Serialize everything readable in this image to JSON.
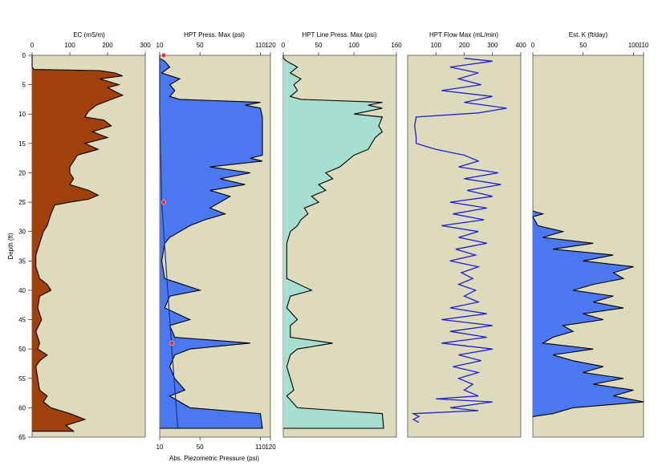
{
  "depth_label": "Depth (ft)",
  "y_ticks": [
    0,
    5,
    10,
    15,
    20,
    25,
    30,
    35,
    40,
    45,
    50,
    55,
    60,
    65
  ],
  "colors": {
    "panel_bg": "#dedbbc",
    "ec_fill": "#a0410d",
    "press_fill": "#4b78ee",
    "line_fill": "#a6dfd0",
    "flow_line": "#1f1fd6",
    "k_fill": "#4b78ee",
    "piezo_line": "#1e2f8c",
    "piezo_marker": "#e0303a"
  },
  "chart_data": [
    {
      "type": "area",
      "title": "EC (mS/m)",
      "xlim": [
        0,
        300
      ],
      "xticks": [
        0,
        100,
        200,
        300
      ],
      "ylim": [
        0,
        65
      ],
      "y_inverted": true,
      "points": [
        [
          0,
          0
        ],
        [
          0,
          2
        ],
        [
          5,
          2.4
        ],
        [
          180,
          2.6
        ],
        [
          220,
          3
        ],
        [
          240,
          3.5
        ],
        [
          180,
          4
        ],
        [
          230,
          5
        ],
        [
          200,
          5.5
        ],
        [
          240,
          6.8
        ],
        [
          210,
          7.5
        ],
        [
          170,
          8.5
        ],
        [
          150,
          9.5
        ],
        [
          140,
          10.5
        ],
        [
          190,
          11
        ],
        [
          210,
          12
        ],
        [
          160,
          13
        ],
        [
          200,
          14
        ],
        [
          140,
          15
        ],
        [
          175,
          16
        ],
        [
          120,
          17
        ],
        [
          110,
          18
        ],
        [
          100,
          19
        ],
        [
          100,
          20
        ],
        [
          110,
          21
        ],
        [
          100,
          22
        ],
        [
          150,
          23
        ],
        [
          175,
          23.8
        ],
        [
          150,
          24.5
        ],
        [
          100,
          25
        ],
        [
          60,
          25.5
        ],
        [
          50,
          27
        ],
        [
          45,
          28
        ],
        [
          40,
          29
        ],
        [
          30,
          30
        ],
        [
          20,
          32
        ],
        [
          10,
          34
        ],
        [
          10,
          36
        ],
        [
          20,
          38
        ],
        [
          40,
          39
        ],
        [
          50,
          40
        ],
        [
          20,
          41
        ],
        [
          15,
          43
        ],
        [
          25,
          45
        ],
        [
          10,
          47
        ],
        [
          20,
          49
        ],
        [
          15,
          50
        ],
        [
          40,
          51
        ],
        [
          20,
          52
        ],
        [
          10,
          53
        ],
        [
          15,
          55
        ],
        [
          20,
          57
        ],
        [
          40,
          58
        ],
        [
          30,
          59
        ],
        [
          50,
          60
        ],
        [
          100,
          61
        ],
        [
          140,
          62
        ],
        [
          90,
          63
        ],
        [
          110,
          64
        ],
        [
          0,
          64
        ]
      ]
    },
    {
      "type": "area",
      "title": "HPT Press. Max (psi)",
      "xlim": [
        10,
        120
      ],
      "xticks": [
        10,
        50,
        110,
        120
      ],
      "ylim": [
        0,
        65
      ],
      "y_inverted": true,
      "points": [
        [
          10,
          0
        ],
        [
          10,
          0.5
        ],
        [
          15,
          1
        ],
        [
          20,
          2
        ],
        [
          12,
          3
        ],
        [
          30,
          4
        ],
        [
          20,
          5
        ],
        [
          25,
          6
        ],
        [
          20,
          7
        ],
        [
          30,
          7.5
        ],
        [
          110,
          8
        ],
        [
          95,
          8.5
        ],
        [
          110,
          9
        ],
        [
          112,
          10.5
        ],
        [
          112,
          17
        ],
        [
          100,
          17.5
        ],
        [
          112,
          18
        ],
        [
          60,
          19
        ],
        [
          100,
          20
        ],
        [
          70,
          21
        ],
        [
          95,
          22
        ],
        [
          60,
          23
        ],
        [
          80,
          24
        ],
        [
          70,
          25
        ],
        [
          60,
          26
        ],
        [
          75,
          27
        ],
        [
          55,
          28
        ],
        [
          40,
          29
        ],
        [
          30,
          30
        ],
        [
          20,
          31
        ],
        [
          15,
          32
        ],
        [
          12,
          35
        ],
        [
          15,
          38
        ],
        [
          50,
          40
        ],
        [
          20,
          41
        ],
        [
          15,
          43
        ],
        [
          40,
          45
        ],
        [
          20,
          46
        ],
        [
          25,
          48
        ],
        [
          100,
          49
        ],
        [
          40,
          50
        ],
        [
          25,
          51
        ],
        [
          20,
          53
        ],
        [
          25,
          55
        ],
        [
          35,
          57
        ],
        [
          20,
          58
        ],
        [
          40,
          60
        ],
        [
          110,
          61
        ],
        [
          112,
          63.5
        ],
        [
          10,
          63.5
        ]
      ]
    },
    {
      "type": "area",
      "title": "HPT Line Press. Max (psi)",
      "xlim": [
        0,
        160
      ],
      "xticks": [
        0,
        50,
        100,
        160
      ],
      "ylim": [
        0,
        65
      ],
      "y_inverted": true,
      "points": [
        [
          0,
          0
        ],
        [
          0,
          0.5
        ],
        [
          5,
          1
        ],
        [
          20,
          2
        ],
        [
          10,
          3
        ],
        [
          25,
          4
        ],
        [
          15,
          5
        ],
        [
          20,
          6
        ],
        [
          10,
          7
        ],
        [
          25,
          7.5
        ],
        [
          140,
          8
        ],
        [
          120,
          8.5
        ],
        [
          140,
          9
        ],
        [
          100,
          10
        ],
        [
          140,
          10.5
        ],
        [
          135,
          12
        ],
        [
          140,
          13
        ],
        [
          130,
          14
        ],
        [
          125,
          15
        ],
        [
          120,
          16
        ],
        [
          100,
          17
        ],
        [
          90,
          18
        ],
        [
          80,
          19
        ],
        [
          60,
          20
        ],
        [
          70,
          21
        ],
        [
          50,
          22
        ],
        [
          60,
          23
        ],
        [
          40,
          24
        ],
        [
          50,
          25
        ],
        [
          30,
          26
        ],
        [
          35,
          27
        ],
        [
          25,
          28
        ],
        [
          20,
          29
        ],
        [
          10,
          30
        ],
        [
          5,
          32
        ],
        [
          5,
          35
        ],
        [
          5,
          38
        ],
        [
          40,
          40
        ],
        [
          10,
          41
        ],
        [
          5,
          43
        ],
        [
          20,
          45
        ],
        [
          10,
          46
        ],
        [
          10,
          48
        ],
        [
          70,
          49
        ],
        [
          20,
          50
        ],
        [
          10,
          51
        ],
        [
          5,
          53
        ],
        [
          10,
          55
        ],
        [
          15,
          57
        ],
        [
          5,
          58
        ],
        [
          20,
          60
        ],
        [
          140,
          61
        ],
        [
          142,
          63.5
        ],
        [
          0,
          63.5
        ]
      ]
    },
    {
      "type": "line",
      "title": "HPT Flow Max (mL/min)",
      "xlim": [
        0,
        400
      ],
      "xticks": [
        100,
        200,
        300,
        400
      ],
      "ylim": [
        0,
        65
      ],
      "y_inverted": true,
      "points": [
        [
          200,
          0.5
        ],
        [
          300,
          1
        ],
        [
          150,
          2
        ],
        [
          250,
          3
        ],
        [
          180,
          4
        ],
        [
          260,
          5
        ],
        [
          120,
          6
        ],
        [
          300,
          7
        ],
        [
          200,
          8
        ],
        [
          350,
          9
        ],
        [
          250,
          9.8
        ],
        [
          30,
          10.5
        ],
        [
          25,
          12
        ],
        [
          30,
          14
        ],
        [
          30,
          15
        ],
        [
          100,
          16
        ],
        [
          200,
          17
        ],
        [
          250,
          18
        ],
        [
          180,
          19
        ],
        [
          320,
          20
        ],
        [
          200,
          21
        ],
        [
          330,
          22
        ],
        [
          210,
          23
        ],
        [
          300,
          24
        ],
        [
          150,
          25
        ],
        [
          280,
          26
        ],
        [
          160,
          27
        ],
        [
          270,
          28
        ],
        [
          120,
          29
        ],
        [
          250,
          30
        ],
        [
          180,
          31
        ],
        [
          280,
          32
        ],
        [
          170,
          33
        ],
        [
          240,
          34
        ],
        [
          150,
          35
        ],
        [
          250,
          36
        ],
        [
          190,
          37
        ],
        [
          230,
          38
        ],
        [
          180,
          39
        ],
        [
          240,
          40
        ],
        [
          200,
          41
        ],
        [
          250,
          42
        ],
        [
          150,
          43
        ],
        [
          280,
          44
        ],
        [
          120,
          45
        ],
        [
          300,
          46
        ],
        [
          150,
          47
        ],
        [
          280,
          48
        ],
        [
          120,
          49
        ],
        [
          300,
          50
        ],
        [
          180,
          51
        ],
        [
          260,
          52
        ],
        [
          160,
          53
        ],
        [
          250,
          54
        ],
        [
          180,
          55
        ],
        [
          230,
          56
        ],
        [
          200,
          57
        ],
        [
          250,
          58
        ],
        [
          100,
          58.5
        ],
        [
          300,
          59
        ],
        [
          150,
          60
        ],
        [
          250,
          60.5
        ],
        [
          20,
          61
        ],
        [
          40,
          61.5
        ],
        [
          20,
          62
        ],
        [
          40,
          62.5
        ]
      ]
    },
    {
      "type": "area",
      "title": "Est. K (ft/day)",
      "xlim": [
        0,
        110
      ],
      "xticks": [
        0,
        50,
        100,
        110
      ],
      "ylim": [
        0,
        65
      ],
      "y_inverted": true,
      "points": [
        [
          0,
          26.5
        ],
        [
          10,
          27
        ],
        [
          0,
          27.5
        ],
        [
          5,
          29
        ],
        [
          30,
          30
        ],
        [
          10,
          31
        ],
        [
          60,
          32
        ],
        [
          20,
          33
        ],
        [
          80,
          34
        ],
        [
          50,
          35
        ],
        [
          100,
          36
        ],
        [
          80,
          37
        ],
        [
          90,
          38
        ],
        [
          60,
          39
        ],
        [
          40,
          40
        ],
        [
          80,
          41
        ],
        [
          60,
          42
        ],
        [
          90,
          43
        ],
        [
          50,
          44
        ],
        [
          70,
          45
        ],
        [
          30,
          46
        ],
        [
          40,
          47
        ],
        [
          20,
          48
        ],
        [
          10,
          49
        ],
        [
          60,
          50
        ],
        [
          20,
          51
        ],
        [
          40,
          52
        ],
        [
          70,
          53
        ],
        [
          50,
          54
        ],
        [
          90,
          55
        ],
        [
          60,
          56
        ],
        [
          100,
          57
        ],
        [
          80,
          58
        ],
        [
          110,
          59
        ],
        [
          40,
          60
        ],
        [
          20,
          61
        ],
        [
          0,
          61.5
        ]
      ]
    }
  ],
  "piezo": {
    "bottom_axis_label": "Abs. Piezometric Pressure (psi)",
    "bottom_ticks": [
      10,
      50,
      110,
      120
    ],
    "line": [
      [
        10,
        0
      ],
      [
        10,
        10
      ],
      [
        12,
        25
      ],
      [
        18,
        40
      ],
      [
        22,
        50
      ],
      [
        28,
        63.5
      ]
    ],
    "markers": [
      [
        14,
        0
      ],
      [
        14,
        25
      ],
      [
        22,
        49
      ]
    ]
  }
}
